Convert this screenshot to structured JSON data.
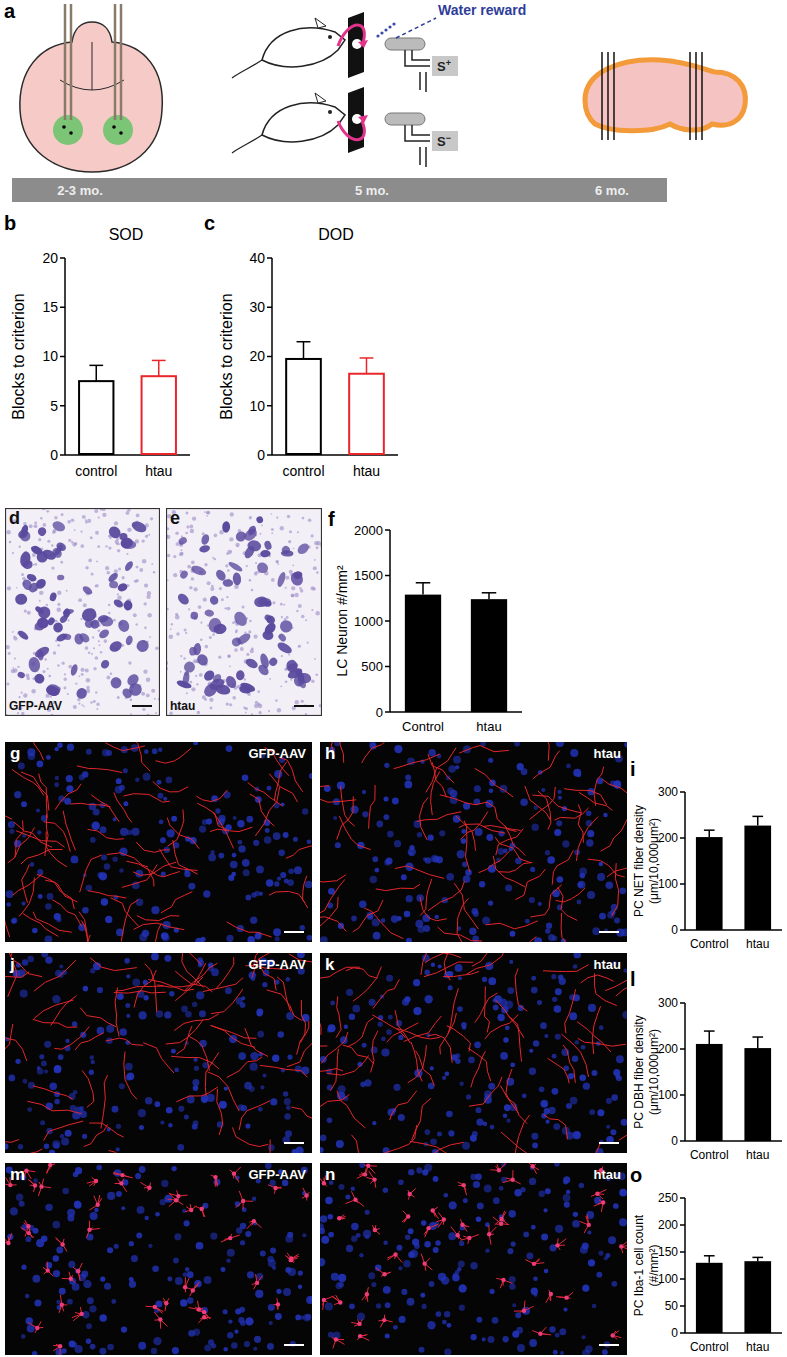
{
  "chart_data": [
    {
      "panel": "b",
      "type": "bar",
      "title": "SOD",
      "y_label": [
        "Blocks to criterion"
      ],
      "categories": [
        "control",
        "htau"
      ],
      "values": [
        7.5,
        8.0
      ],
      "errors": [
        1.6,
        1.6
      ],
      "colors": [
        "#000000",
        "#e8262b"
      ],
      "ylim": [
        0,
        20
      ],
      "yticks": [
        0,
        5,
        10,
        15,
        20
      ]
    },
    {
      "panel": "c",
      "type": "bar",
      "title": "DOD",
      "y_label": [
        "Blocks to criterion"
      ],
      "categories": [
        "control",
        "htau"
      ],
      "values": [
        19.5,
        16.5
      ],
      "errors": [
        3.5,
        3.2
      ],
      "colors": [
        "#000000",
        "#e8262b"
      ],
      "ylim": [
        0,
        40
      ],
      "yticks": [
        0,
        10,
        20,
        30,
        40
      ]
    },
    {
      "panel": "f",
      "type": "bar",
      "y_label": [
        "LC Neuron #/mm²"
      ],
      "categories": [
        "Control",
        "htau"
      ],
      "values": [
        1290,
        1240
      ],
      "errors": [
        130,
        70
      ],
      "color": "#000000",
      "ylim": [
        0,
        2000
      ],
      "yticks": [
        0,
        500,
        1000,
        1500,
        2000
      ]
    },
    {
      "panel": "i",
      "type": "bar",
      "y_label": [
        "PC NET fiber density",
        "(μm/10,000μm²)"
      ],
      "categories": [
        "Control",
        "htau"
      ],
      "values": [
        202,
        227
      ],
      "errors": [
        15,
        20
      ],
      "color": "#000000",
      "ylim": [
        0,
        300
      ],
      "yticks": [
        0,
        100,
        200,
        300
      ]
    },
    {
      "panel": "l",
      "type": "bar",
      "y_label": [
        "PC DBH fiber density",
        "(μm/10,000μm²)"
      ],
      "categories": [
        "Control",
        "htau"
      ],
      "values": [
        211,
        202
      ],
      "errors": [
        28,
        24
      ],
      "color": "#000000",
      "ylim": [
        0,
        300
      ],
      "yticks": [
        0,
        100,
        200,
        300
      ]
    },
    {
      "panel": "o",
      "type": "bar",
      "y_label": [
        "PC Iba-1 cell count",
        "(#/mm²)"
      ],
      "categories": [
        "Control",
        "htau"
      ],
      "values": [
        130,
        133
      ],
      "errors": [
        13,
        7
      ],
      "color": "#000000",
      "ylim": [
        0,
        250
      ],
      "yticks": [
        0,
        50,
        100,
        150,
        200,
        250
      ]
    }
  ],
  "figure": {
    "schematic": {
      "panel": "a",
      "reward": "Water reward",
      "stimuli": [
        "S+",
        "S−"
      ],
      "timeline": [
        "2-3 mo.",
        "5 mo.",
        "6 mo."
      ]
    },
    "images": [
      {
        "panel": "d",
        "label": "GFP-AAV"
      },
      {
        "panel": "e",
        "label": "htau"
      },
      {
        "panel": "g",
        "label": "GFP-AAV"
      },
      {
        "panel": "h",
        "label": "htau"
      },
      {
        "panel": "j",
        "label": "GFP-AAV"
      },
      {
        "panel": "k",
        "label": "htau"
      },
      {
        "panel": "m",
        "label": "GFP-AAV"
      },
      {
        "panel": "n",
        "label": "htau"
      }
    ]
  }
}
